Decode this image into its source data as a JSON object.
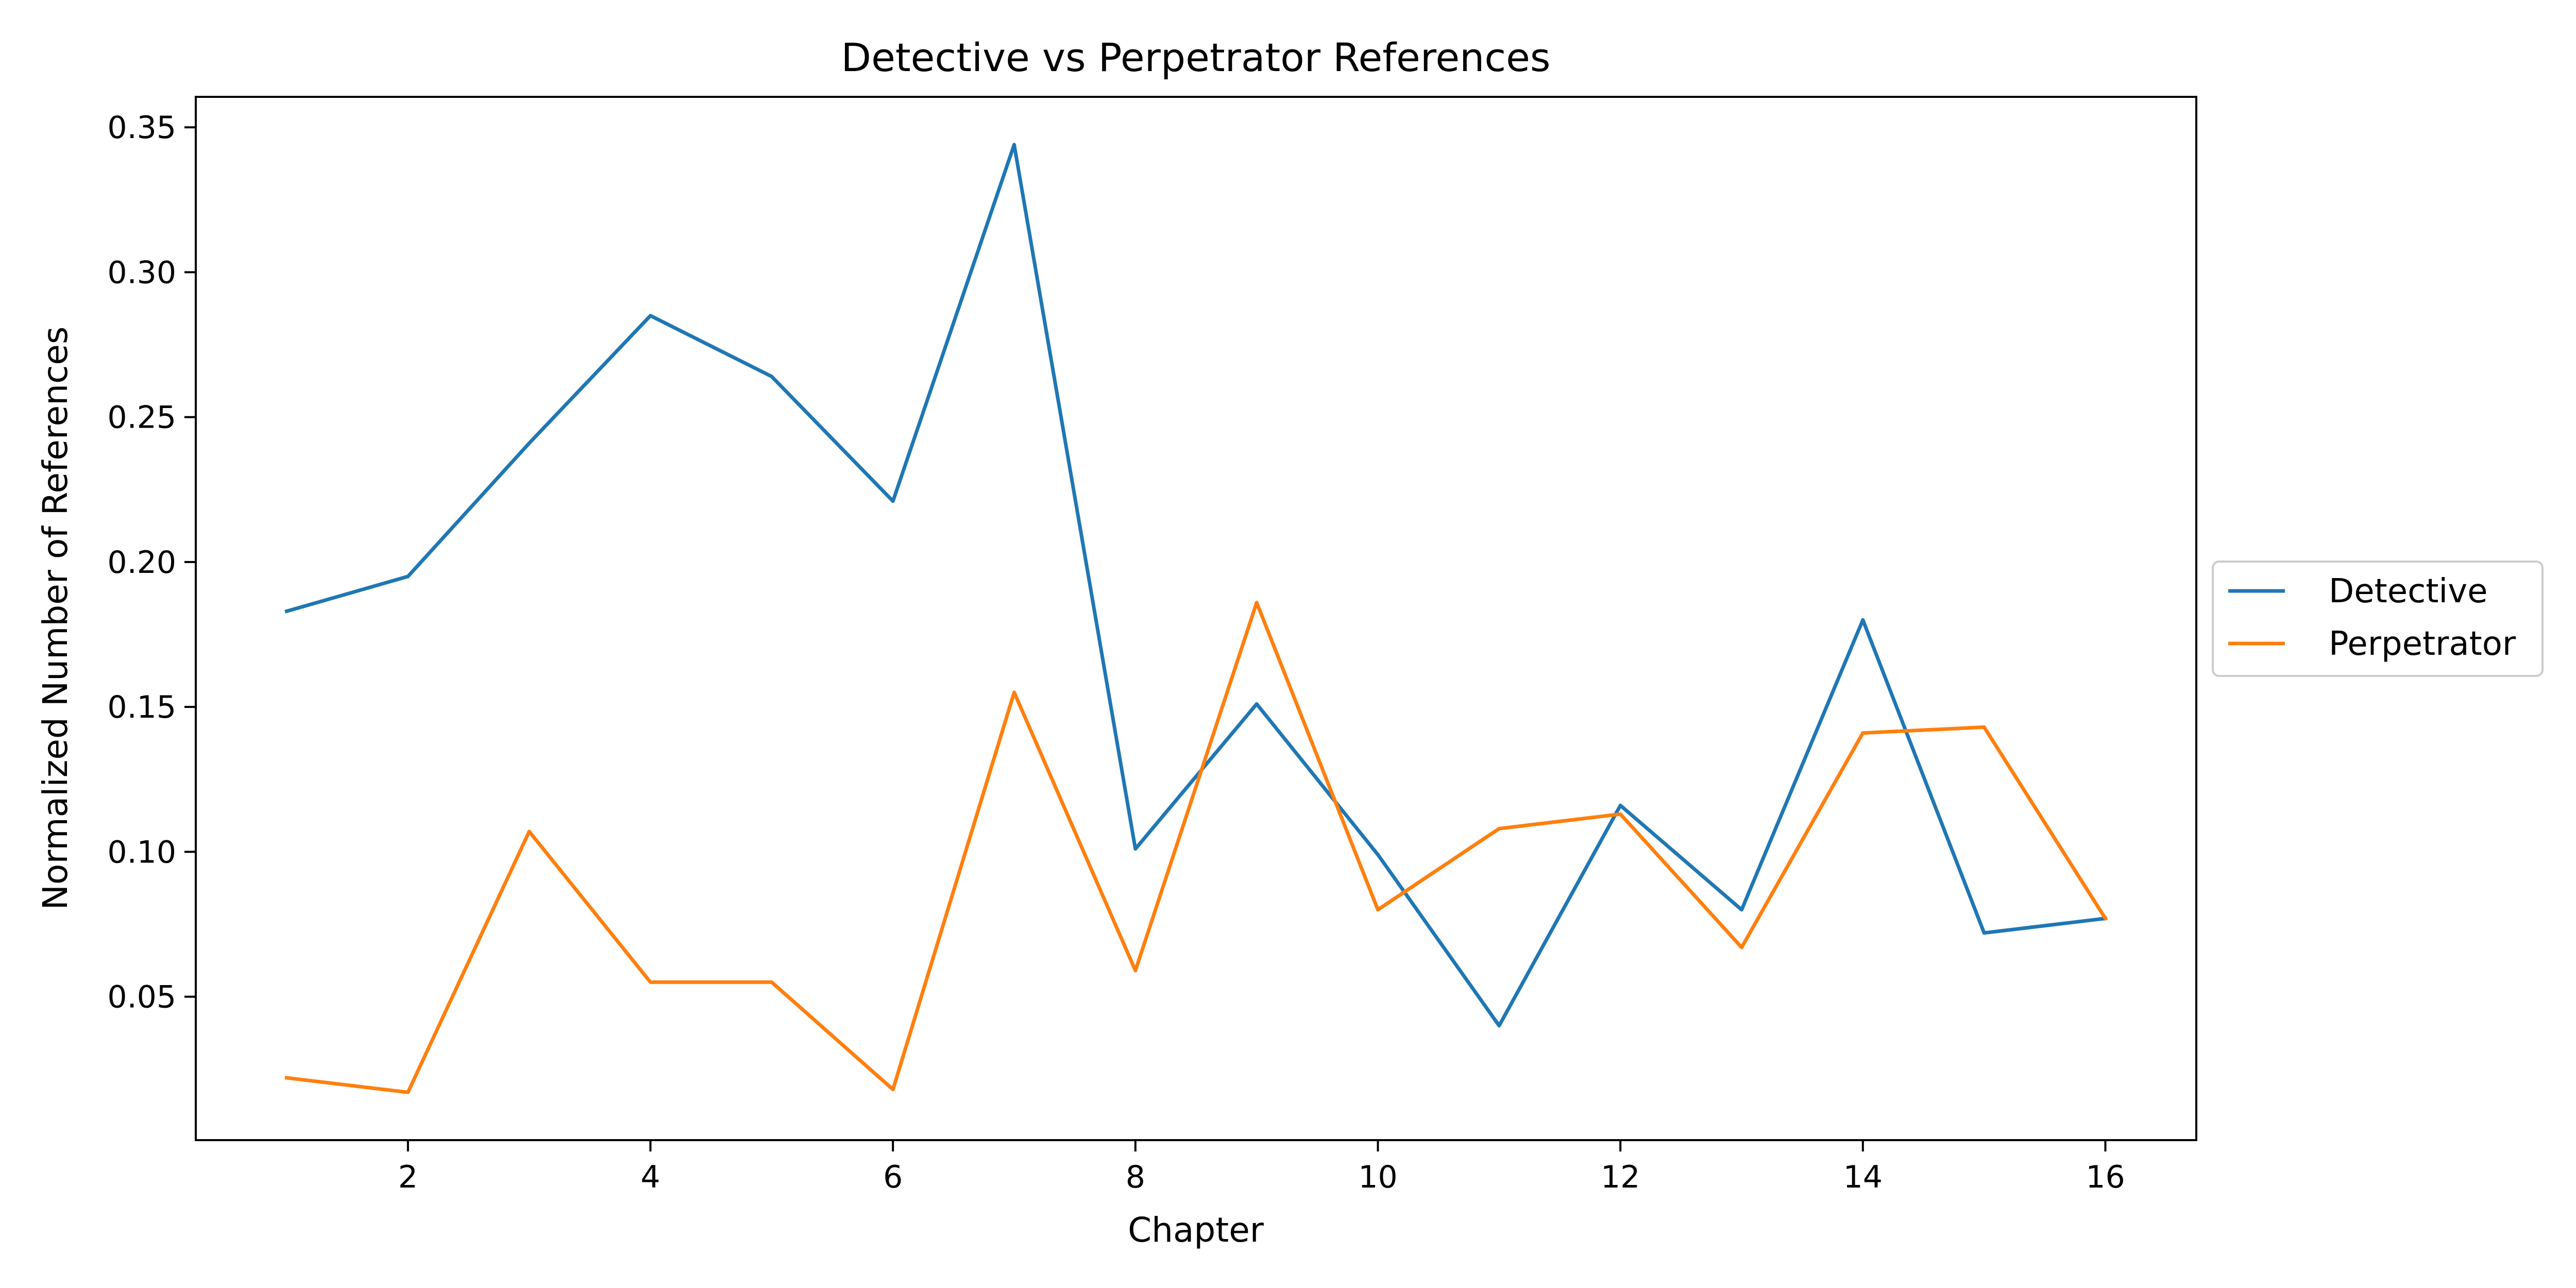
{
  "chart_data": {
    "type": "line",
    "title": "Detective vs Perpetrator References",
    "xlabel": "Chapter",
    "ylabel": "Normalized Number of References",
    "xlim": [
      0.25,
      16.75
    ],
    "ylim": [
      0.0005,
      0.3605
    ],
    "x_ticks": [
      2,
      4,
      6,
      8,
      10,
      12,
      14,
      16
    ],
    "x_tick_labels": [
      "2",
      "4",
      "6",
      "8",
      "10",
      "12",
      "14",
      "16"
    ],
    "y_ticks": [
      0.05,
      0.1,
      0.15,
      0.2,
      0.25,
      0.3,
      0.35
    ],
    "y_tick_labels": [
      "0.05",
      "0.10",
      "0.15",
      "0.20",
      "0.25",
      "0.30",
      "0.35"
    ],
    "grid": false,
    "legend_position": "center-right outside",
    "x": [
      1,
      2,
      3,
      4,
      5,
      6,
      7,
      8,
      9,
      10,
      11,
      12,
      13,
      14,
      15,
      16
    ],
    "series": [
      {
        "name": "Detective",
        "color": "#1f77b4",
        "values": [
          0.183,
          0.195,
          0.241,
          0.285,
          0.264,
          0.221,
          0.344,
          0.101,
          0.151,
          0.099,
          0.04,
          0.116,
          0.08,
          0.18,
          0.072,
          0.077
        ]
      },
      {
        "name": "Perpetrator",
        "color": "#ff7f0e",
        "values": [
          0.022,
          0.017,
          0.107,
          0.055,
          0.055,
          0.018,
          0.155,
          0.059,
          0.186,
          0.08,
          0.108,
          0.113,
          0.067,
          0.141,
          0.143,
          0.077
        ]
      }
    ]
  }
}
